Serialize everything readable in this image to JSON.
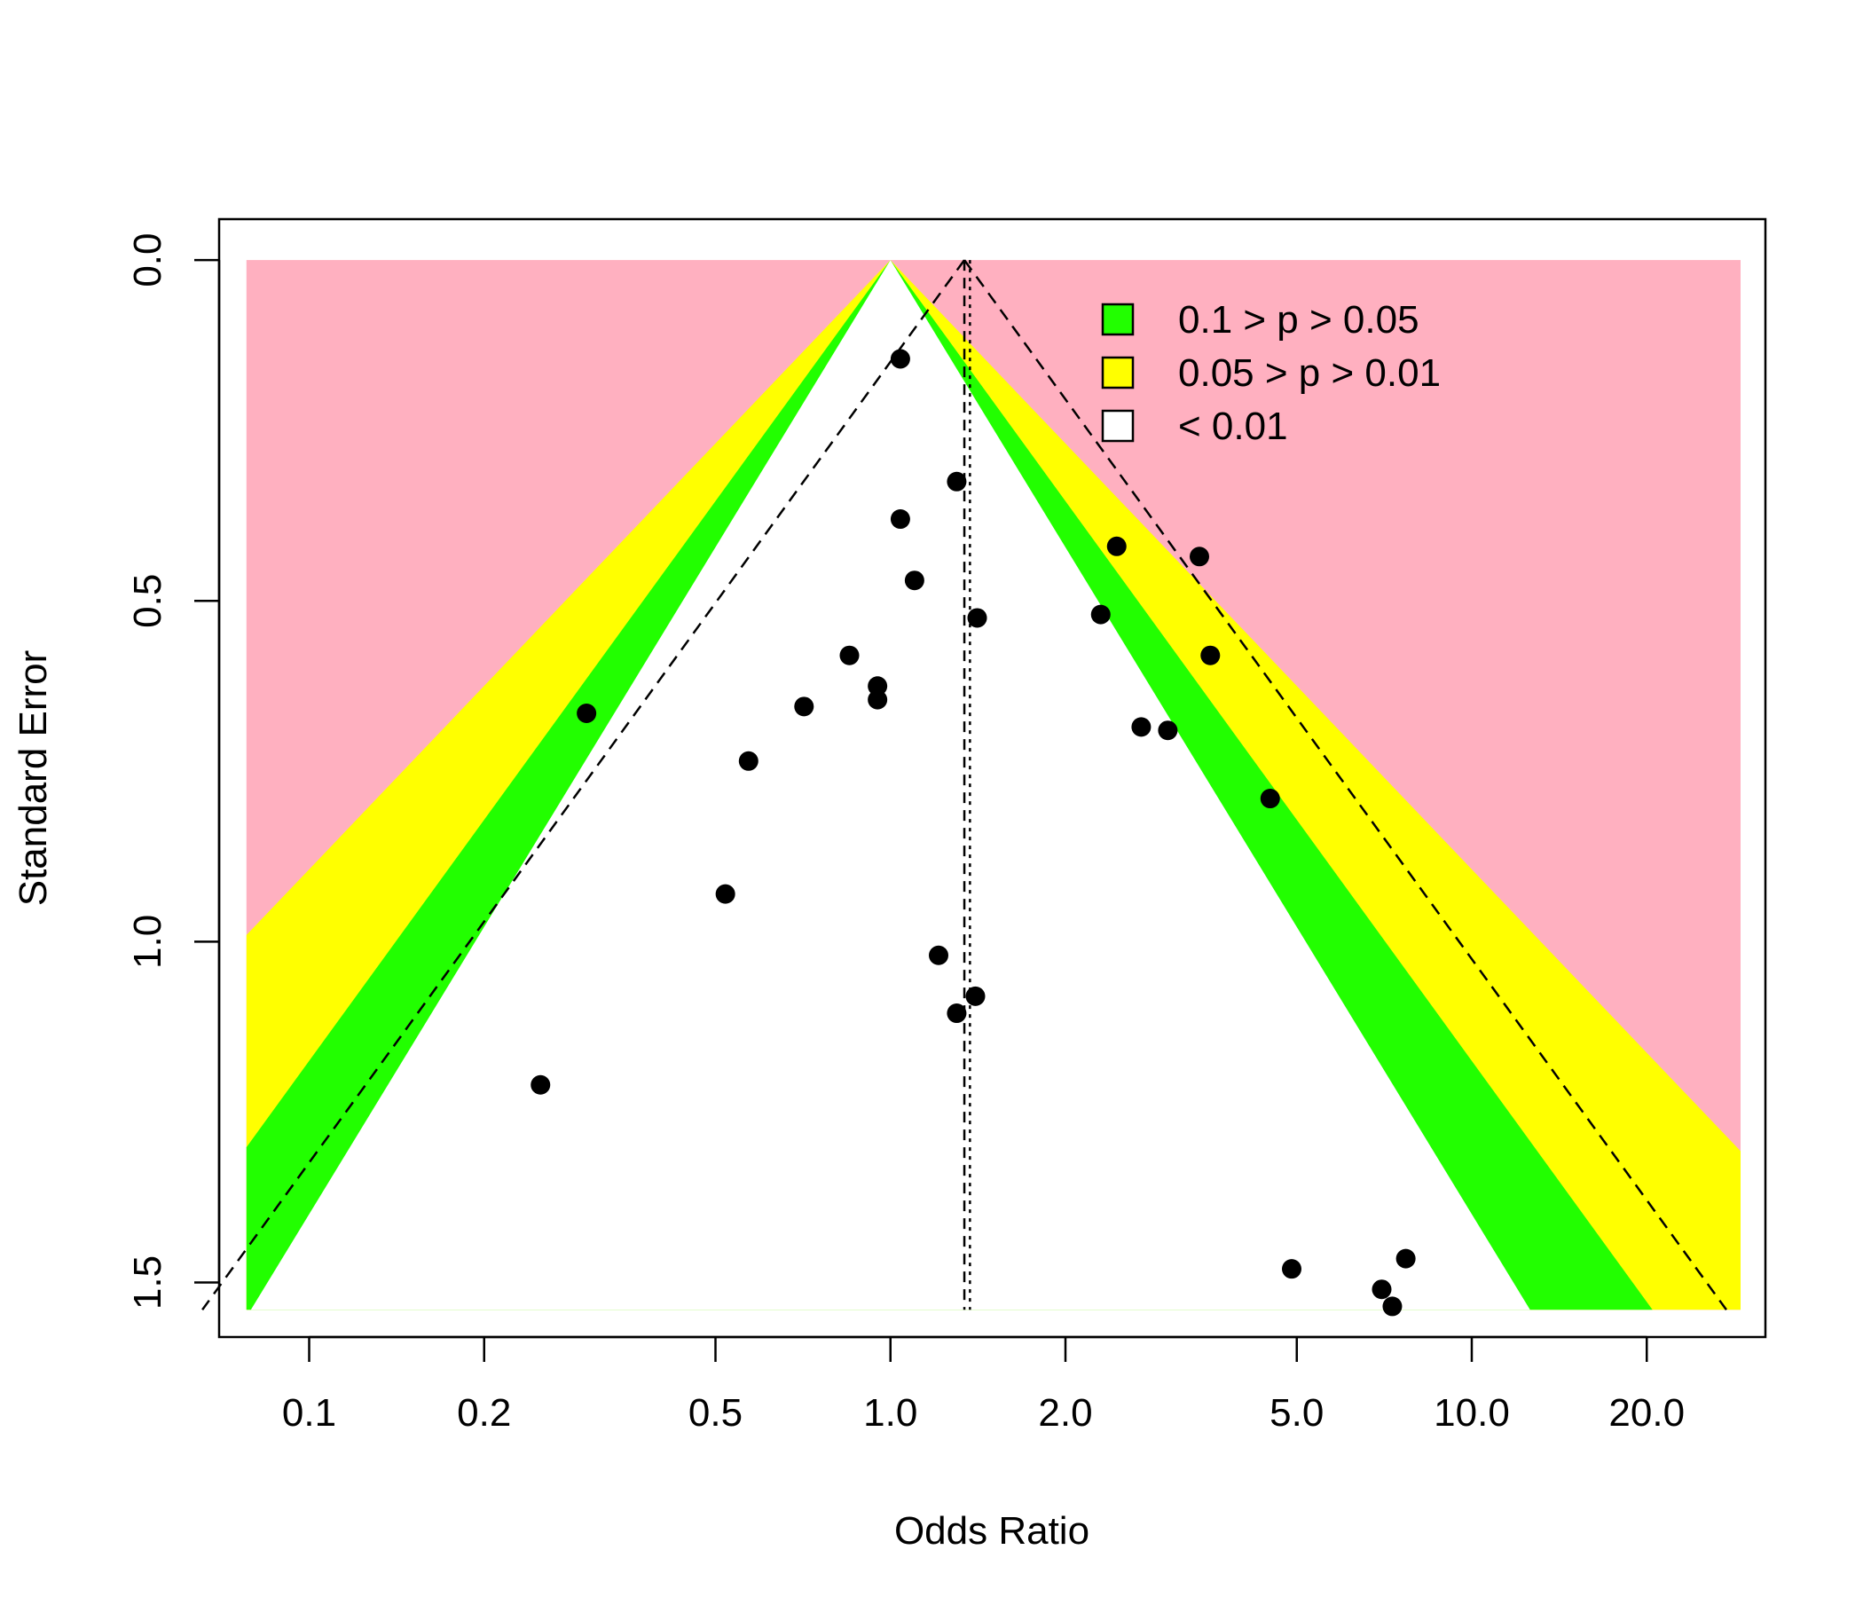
{
  "chart_data": {
    "type": "scatter",
    "title": "",
    "xlabel": "Odds Ratio",
    "ylabel": "Standard Error",
    "x_scale": "log",
    "xlim": [
      0.07,
      32
    ],
    "ylim": [
      1.58,
      -0.06
    ],
    "y_reversed": true,
    "x_ticks": [
      0.1,
      0.2,
      0.5,
      1.0,
      2.0,
      5.0,
      10.0,
      20.0
    ],
    "x_tick_labels": [
      "0.1",
      "0.2",
      "0.5",
      "1.0",
      "2.0",
      "5.0",
      "10.0",
      "20.0"
    ],
    "y_ticks": [
      0.0,
      0.5,
      1.0,
      1.5
    ],
    "y_tick_labels": [
      "0.0",
      "0.5",
      "1.0",
      "1.5"
    ],
    "grid": false,
    "legend_position": "top-right",
    "legend": [
      {
        "label": "0.1 > p > 0.05",
        "color": "#22ff00"
      },
      {
        "label": "0.05 > p > 0.01",
        "color": "#ffff00"
      },
      {
        "label": "< 0.01",
        "color": "#ffffff"
      }
    ],
    "contour_center_or": 1.0,
    "region_x_range": [
      0.078,
      29.0
    ],
    "region_se_max": 1.54,
    "z_values": {
      "p10": 1.645,
      "p05": 1.96,
      "p01": 2.576
    },
    "colors": {
      "outer": "#ffb0c0",
      "p05_band": "#ffff00",
      "p10_band": "#22ff00",
      "inner": "#ffffff",
      "points": "#000000"
    },
    "pooled_estimates": [
      1.34,
      1.37
    ],
    "funnel_apex_or": 1.34,
    "points": [
      {
        "x": 1.04,
        "y": 0.145
      },
      {
        "x": 1.3,
        "y": 0.325
      },
      {
        "x": 1.04,
        "y": 0.38
      },
      {
        "x": 2.45,
        "y": 0.42
      },
      {
        "x": 3.4,
        "y": 0.435
      },
      {
        "x": 1.1,
        "y": 0.47
      },
      {
        "x": 1.41,
        "y": 0.525
      },
      {
        "x": 2.3,
        "y": 0.52
      },
      {
        "x": 0.85,
        "y": 0.58
      },
      {
        "x": 3.55,
        "y": 0.58
      },
      {
        "x": 0.95,
        "y": 0.625
      },
      {
        "x": 0.95,
        "y": 0.645
      },
      {
        "x": 0.71,
        "y": 0.655
      },
      {
        "x": 0.3,
        "y": 0.665
      },
      {
        "x": 2.7,
        "y": 0.685
      },
      {
        "x": 3.0,
        "y": 0.69
      },
      {
        "x": 0.57,
        "y": 0.735
      },
      {
        "x": 4.5,
        "y": 0.79
      },
      {
        "x": 0.52,
        "y": 0.93
      },
      {
        "x": 1.21,
        "y": 1.02
      },
      {
        "x": 1.4,
        "y": 1.08
      },
      {
        "x": 1.3,
        "y": 1.105
      },
      {
        "x": 0.25,
        "y": 1.21
      },
      {
        "x": 7.7,
        "y": 1.465
      },
      {
        "x": 4.9,
        "y": 1.48
      },
      {
        "x": 7.0,
        "y": 1.51
      },
      {
        "x": 7.3,
        "y": 1.535
      }
    ]
  }
}
